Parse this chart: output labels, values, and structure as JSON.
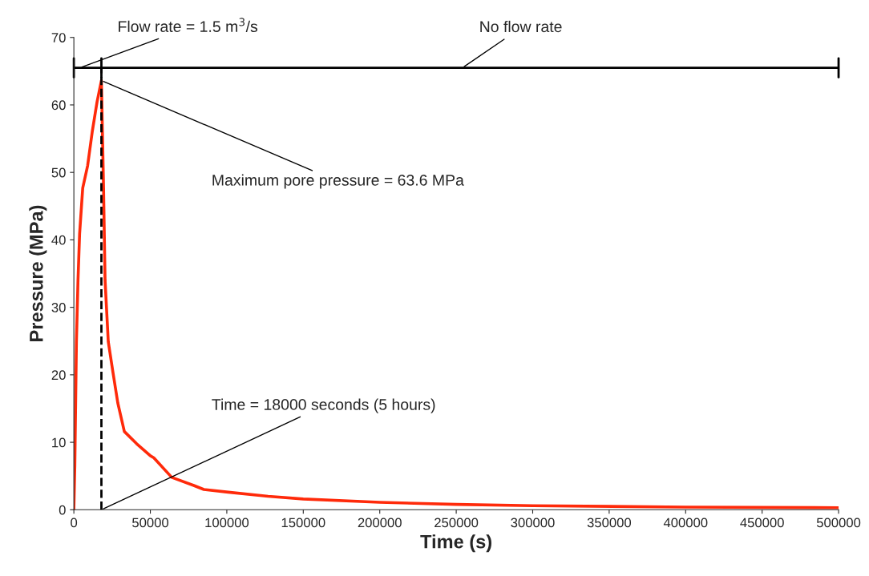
{
  "chart_data": {
    "type": "line",
    "xlabel": "Time (s)",
    "ylabel": "Pressure (MPa)",
    "series": [
      {
        "color": "#ff2a0a",
        "x": [
          0,
          625,
          1670,
          2700,
          3750,
          5800,
          9000,
          12000,
          15200,
          18000,
          19400,
          20400,
          22500,
          25600,
          28750,
          33000,
          41000,
          50000,
          52300,
          64000,
          78400,
          85000,
          101000,
          127000,
          150000,
          200000,
          250000,
          300000,
          400000,
          500000
        ],
        "values": [
          0,
          6.6,
          24.9,
          34,
          40.9,
          47.7,
          51,
          56,
          60.5,
          63.6,
          47.7,
          34,
          24.9,
          20.3,
          15.8,
          11.6,
          9.8,
          8,
          7.7,
          4.8,
          3.6,
          3.0,
          2.6,
          2.0,
          1.6,
          1.1,
          0.8,
          0.6,
          0.4,
          0.3
        ]
      }
    ],
    "xlim": [
      0,
      500000
    ],
    "xticks": [
      0,
      50000,
      100000,
      150000,
      200000,
      250000,
      300000,
      350000,
      400000,
      450000,
      500000
    ],
    "ylim": [
      0,
      70
    ],
    "yticks": [
      0,
      10,
      20,
      30,
      40,
      50,
      60,
      70
    ],
    "grid": false,
    "marker": "none",
    "line_style": "solid",
    "ref_lines": [
      {
        "axis": "x",
        "value": 18000,
        "line_style": "dashed",
        "color": "#000000"
      },
      {
        "axis": "y",
        "value": 65.5,
        "line_style": "solid",
        "color": "#000000"
      }
    ],
    "annotations": [
      {
        "text": "Flow rate = 1.5 m$^{3}$/s",
        "x": 4000,
        "y": 65.5
      },
      {
        "text": "No flow rate",
        "x": 254000,
        "y": 65.5
      },
      {
        "text": "Maximum pore pressure = 63.6 MPa",
        "x": 18000,
        "y": 63.6
      },
      {
        "text": "Time = 18000 seconds (5 hours)",
        "x": 18000,
        "y": 0
      }
    ]
  }
}
